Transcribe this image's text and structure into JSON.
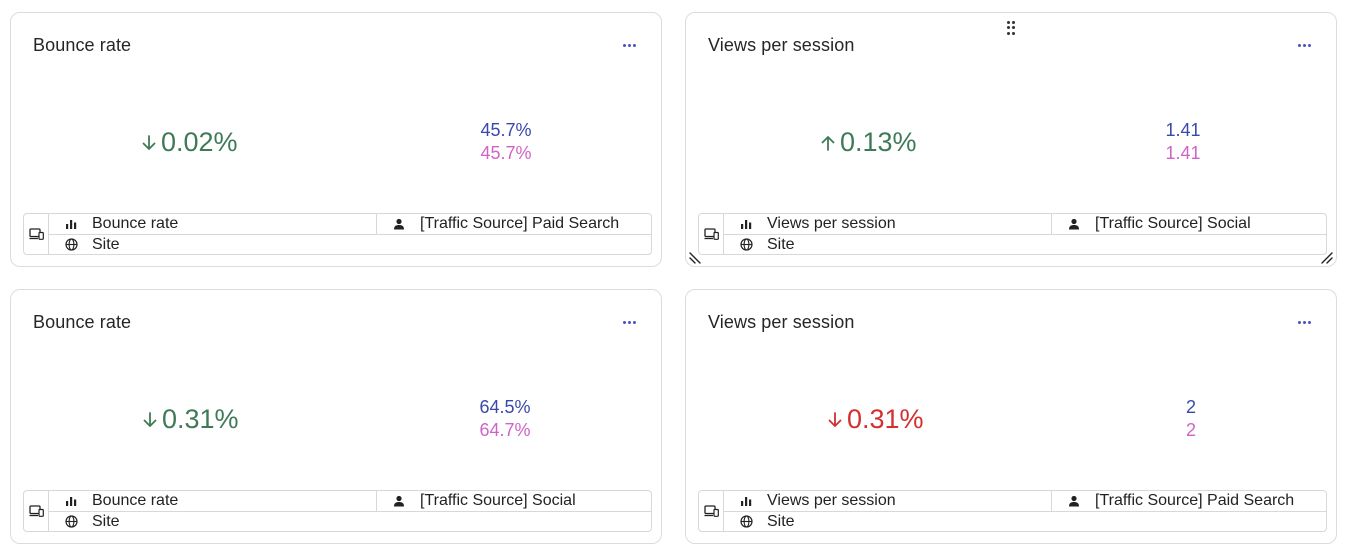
{
  "cards": [
    {
      "title": "Bounce rate",
      "delta": "0.02%",
      "direction": "down",
      "sentiment": "good",
      "current": "45.7%",
      "previous": "45.7%",
      "metric": "Bounce rate",
      "segment": "[Traffic Source] Paid Search",
      "scope": "Site"
    },
    {
      "title": "Views per session",
      "delta": "0.13%",
      "direction": "up",
      "sentiment": "good",
      "current": "1.41",
      "previous": "1.41",
      "metric": "Views per session",
      "segment": "[Traffic Source] Social",
      "scope": "Site"
    },
    {
      "title": "Bounce rate",
      "delta": "0.31%",
      "direction": "down",
      "sentiment": "good",
      "current": "64.5%",
      "previous": "64.7%",
      "metric": "Bounce rate",
      "segment": "[Traffic Source] Social",
      "scope": "Site"
    },
    {
      "title": "Views per session",
      "delta": "0.31%",
      "direction": "down",
      "sentiment": "bad",
      "current": "2",
      "previous": "2",
      "metric": "Views per session",
      "segment": "[Traffic Source] Paid Search",
      "scope": "Site"
    }
  ],
  "colors": {
    "good": "#3f7a57",
    "bad": "#d32f2f",
    "current": "#3949ab",
    "previous": "#d063c6",
    "accent": "#4c51bf"
  },
  "icons": {
    "menu": "more-horizontal-icon",
    "device": "devices-icon",
    "metric": "bar-chart-icon",
    "segment": "person-icon",
    "scope": "globe-icon",
    "drag": "drag-handle-icon"
  }
}
